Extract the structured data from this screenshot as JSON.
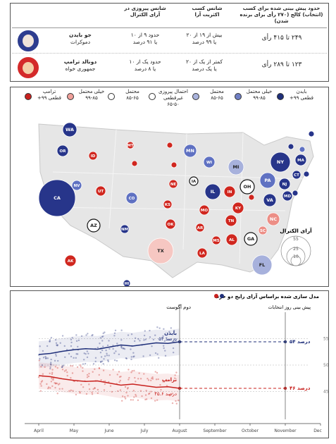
{
  "table": {
    "headers": {
      "votes": "حدود پیش بینی شده برای کسب (انتخاب) کالج (۲۷۰ رأی برای برنده شدن)",
      "chance": "شانس کسب اکثریت آرا",
      "popular": "شانس پیروزی در آرای الکترال"
    },
    "rows": [
      {
        "name": "جو بایدن",
        "party": "دموکرات",
        "votes": "۲۴۹ تا ۴۱۵ رأی",
        "chance": "بیش از ۱۹ از ۲۰",
        "chance2": "یا ۹۹ درصد",
        "popular": "حدود ۹ از ۱۰",
        "popular2": "یا ۹۱ درصد",
        "color": "#2e3d8f"
      },
      {
        "name": "دونالد ترامپ",
        "party": "جمهوری خواه",
        "votes": "۱۲۳ تا ۲۸۹ رأی",
        "chance": "کمتر از یک از ۲۰",
        "chance2": "یا یک درصد",
        "popular": "حدود یک از ۱۰",
        "popular2": "یا ۸ درصد",
        "color": "#d42a2a"
      }
    ]
  },
  "legend": [
    {
      "label": "بایدن",
      "label2": "قطعی ۹۹+",
      "color": "#1f2f7a"
    },
    {
      "label": "خیلی محتمل",
      "label2": "۹۹-۸۵",
      "color": "#6f7fc4"
    },
    {
      "label": "محتمل",
      "label2": "۸۵-۶۵",
      "color": "#a9b3dc"
    },
    {
      "label": "احتمال پیروزی",
      "label2": "غیرقطعی",
      "label3": "۶۵-۵۰",
      "color": "#ffffff"
    },
    {
      "label": "محتمل",
      "label2": "۸۵-۶۵",
      "color": "#ffffff"
    },
    {
      "label": "خیلی محتمل",
      "label2": "۹۹-۸۵",
      "color": "#f0a09a"
    },
    {
      "label": "ترامپ",
      "label2": "قطعی ۹۹+",
      "color": "#c8211e"
    }
  ],
  "ev_legend": {
    "title": "آرای الکترال",
    "values": [
      "55",
      "25",
      "10"
    ]
  },
  "states": [
    {
      "abbr": "WA",
      "cat": "b_safe"
    },
    {
      "abbr": "OR",
      "cat": "b_safe"
    },
    {
      "abbr": "CA",
      "cat": "b_safe"
    },
    {
      "abbr": "NV",
      "cat": "b_likely"
    },
    {
      "abbr": "ID",
      "cat": "t_safe"
    },
    {
      "abbr": "MT",
      "cat": "t_safe"
    },
    {
      "abbr": "WY",
      "cat": "t_safe"
    },
    {
      "abbr": "UT",
      "cat": "t_safe"
    },
    {
      "abbr": "AZ",
      "cat": "tossup"
    },
    {
      "abbr": "CO",
      "cat": "b_likely"
    },
    {
      "abbr": "NM",
      "cat": "b_safe"
    },
    {
      "abbr": "ND",
      "cat": "t_safe"
    },
    {
      "abbr": "SD",
      "cat": "t_safe"
    },
    {
      "abbr": "NE",
      "cat": "t_safe"
    },
    {
      "abbr": "KS",
      "cat": "t_safe"
    },
    {
      "abbr": "OK",
      "cat": "t_safe"
    },
    {
      "abbr": "TX",
      "cat": "t_lean"
    },
    {
      "abbr": "MN",
      "cat": "b_likely"
    },
    {
      "abbr": "IA",
      "cat": "tossup"
    },
    {
      "abbr": "MO",
      "cat": "t_safe"
    },
    {
      "abbr": "AR",
      "cat": "t_safe"
    },
    {
      "abbr": "LA",
      "cat": "t_safe"
    },
    {
      "abbr": "WI",
      "cat": "b_likely"
    },
    {
      "abbr": "IL",
      "cat": "b_safe"
    },
    {
      "abbr": "MI",
      "cat": "b_lean"
    },
    {
      "abbr": "IN",
      "cat": "t_safe"
    },
    {
      "abbr": "OH",
      "cat": "tossup"
    },
    {
      "abbr": "KY",
      "cat": "t_safe"
    },
    {
      "abbr": "TN",
      "cat": "t_safe"
    },
    {
      "abbr": "MS",
      "cat": "t_safe"
    },
    {
      "abbr": "AL",
      "cat": "t_safe"
    },
    {
      "abbr": "GA",
      "cat": "tossup"
    },
    {
      "abbr": "FL",
      "cat": "b_lean"
    },
    {
      "abbr": "SC",
      "cat": "t_likely"
    },
    {
      "abbr": "NC",
      "cat": "t_likely"
    },
    {
      "abbr": "VA",
      "cat": "b_safe"
    },
    {
      "abbr": "WV",
      "cat": "t_safe"
    },
    {
      "abbr": "PA",
      "cat": "b_likely"
    },
    {
      "abbr": "NY",
      "cat": "b_safe"
    },
    {
      "abbr": "NJ",
      "cat": "b_safe"
    },
    {
      "abbr": "MD",
      "cat": "b_safe"
    },
    {
      "abbr": "DE",
      "cat": "b_safe"
    },
    {
      "abbr": "CT",
      "cat": "b_safe"
    },
    {
      "abbr": "RI",
      "cat": "b_safe"
    },
    {
      "abbr": "MA",
      "cat": "b_safe"
    },
    {
      "abbr": "VT",
      "cat": "b_safe"
    },
    {
      "abbr": "NH",
      "cat": "b_likely"
    },
    {
      "abbr": "ME",
      "cat": "b_safe"
    },
    {
      "abbr": "AK",
      "cat": "t_safe"
    },
    {
      "abbr": "HI",
      "cat": "b_safe"
    }
  ],
  "cat_colors": {
    "b_safe": "#27358a",
    "b_likely": "#5f71c2",
    "b_lean": "#a7b1dc",
    "tossup": "#ffffff",
    "t_lean": "#f6c7c2",
    "t_likely": "#ec8e86",
    "t_safe": "#d0271f"
  },
  "chart_data": {
    "type": "line",
    "title": "مدل سازی شده براساس آرای رایج دو حزب",
    "x_ticks": [
      "April",
      "May",
      "June",
      "July",
      "August",
      "September",
      "October",
      "November",
      "Dec"
    ],
    "y_ticks": [
      45,
      50,
      55
    ],
    "ylim": [
      40,
      60
    ],
    "annotations": {
      "now": "دوم آگوست",
      "election": "پیش بینی روز انتخابات"
    },
    "series": [
      {
        "name": "بایدن",
        "color": "#1f2f7a",
        "current": "۵۴ درصد",
        "forecast": "۵۴ درصد",
        "values": [
          52.0,
          52.2,
          52.6,
          52.9,
          53.1,
          53.0,
          53.4,
          53.8,
          53.6,
          53.9,
          54.2,
          54.1,
          54.4
        ]
      },
      {
        "name": "ترامپ",
        "color": "#c8211e",
        "current": "۴۵.۶ درصد",
        "forecast": "۴۶ درصد",
        "values": [
          48.0,
          47.8,
          47.4,
          47.1,
          46.9,
          47.0,
          46.6,
          46.2,
          46.4,
          46.1,
          45.8,
          45.9,
          45.6
        ]
      }
    ]
  }
}
